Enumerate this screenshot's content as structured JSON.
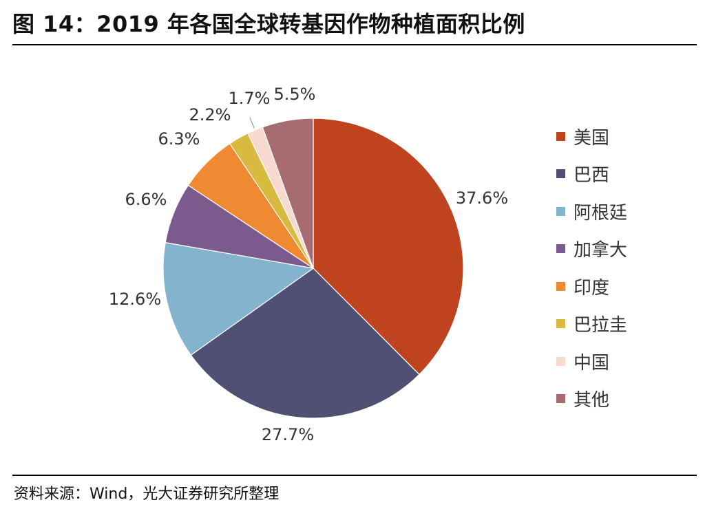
{
  "title": "图 14：2019 年各国全球转基因作物种植面积比例",
  "source": "资料来源：Wind，光大证券研究所整理",
  "chart_data": {
    "type": "pie",
    "unit": "%",
    "legend_position": "right",
    "categories": [
      "美国",
      "巴西",
      "阿根廷",
      "加拿大",
      "印度",
      "巴拉圭",
      "中国",
      "其他"
    ],
    "values": [
      37.6,
      27.7,
      12.6,
      6.6,
      6.3,
      2.2,
      1.7,
      5.5
    ],
    "labels": [
      "37.6%",
      "27.7%",
      "12.6%",
      "6.6%",
      "6.3%",
      "2.2%",
      "1.7%",
      "5.5%"
    ],
    "colors": [
      "#C0431F",
      "#4F5073",
      "#84B4CD",
      "#7B5A8E",
      "#EF8A32",
      "#D7BA3F",
      "#F8D9CF",
      "#A76B72"
    ],
    "start": "12 o'clock",
    "direction": "clockwise"
  }
}
